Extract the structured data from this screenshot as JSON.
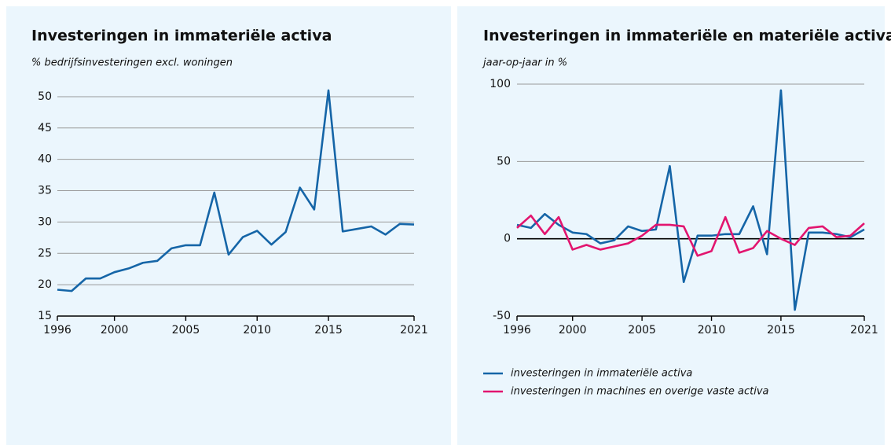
{
  "chart_data": [
    {
      "type": "line",
      "title": "Investeringen in immateriële activa",
      "subtitle": "% bedrijfsinvesteringen excl. woningen",
      "x": [
        1996,
        1997,
        1998,
        1999,
        2000,
        2001,
        2002,
        2003,
        2004,
        2005,
        2006,
        2007,
        2008,
        2009,
        2010,
        2011,
        2012,
        2013,
        2014,
        2015,
        2016,
        2017,
        2018,
        2019,
        2020,
        2021
      ],
      "values": [
        19.2,
        19.0,
        21.0,
        21.0,
        22.0,
        22.6,
        23.5,
        23.8,
        25.8,
        26.3,
        26.3,
        34.7,
        24.8,
        27.6,
        28.6,
        26.4,
        28.4,
        35.5,
        32.0,
        51.0,
        28.5,
        28.9,
        29.3,
        28.0,
        29.7,
        29.6
      ],
      "color": "#1565a7",
      "xlim": [
        1996,
        2021
      ],
      "xticks": [
        1996,
        2000,
        2005,
        2010,
        2015,
        2021
      ],
      "ylim": [
        15,
        52
      ],
      "yticks": [
        15,
        20,
        25,
        30,
        35,
        40,
        45,
        50
      ],
      "grid": true
    },
    {
      "type": "line",
      "title": "Investeringen in immateriële en materiële activa",
      "subtitle": "jaar-op-jaar in %",
      "x": [
        1996,
        1997,
        1998,
        1999,
        2000,
        2001,
        2002,
        2003,
        2004,
        2005,
        2006,
        2007,
        2008,
        2009,
        2010,
        2011,
        2012,
        2013,
        2014,
        2015,
        2016,
        2017,
        2018,
        2019,
        2020,
        2021
      ],
      "series": [
        {
          "name": "investeringen in immateriële activa",
          "color": "#1565a7",
          "values": [
            9,
            7,
            16,
            9,
            4,
            3,
            -3,
            -1,
            8,
            5,
            6,
            47,
            -28,
            2,
            2,
            3,
            3,
            21,
            -10,
            96,
            -46,
            4,
            4,
            3,
            1,
            6
          ]
        },
        {
          "name": "investeringen in machines en overige vaste activa",
          "color": "#e2156f",
          "values": [
            7,
            15,
            3,
            14,
            -7,
            -4,
            -7,
            -5,
            -3,
            2,
            9,
            9,
            8,
            -11,
            -8,
            14,
            -9,
            -6,
            5,
            0,
            -4,
            7,
            8,
            1,
            2,
            10
          ]
        }
      ],
      "xlim": [
        1996,
        2021
      ],
      "xticks": [
        1996,
        2000,
        2005,
        2010,
        2015,
        2021
      ],
      "ylim": [
        -50,
        100
      ],
      "yticks": [
        -50,
        0,
        50,
        100
      ],
      "grid": true,
      "legend": "bottom"
    }
  ]
}
